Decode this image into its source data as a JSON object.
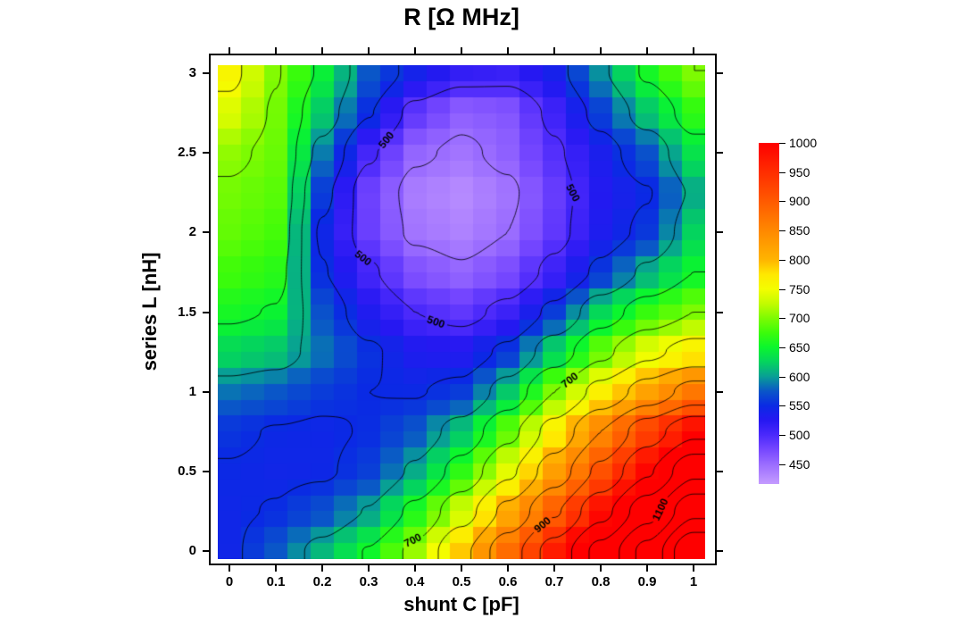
{
  "window": {
    "background": "#ffffff"
  },
  "chart_data": {
    "type": "heatmap",
    "title": "R [Ω  MHz]",
    "xlabel": "shunt C [pF]",
    "ylabel": "series L [nH]",
    "x_range": [
      -0.025,
      1.025
    ],
    "y_range": [
      -0.05,
      3.05
    ],
    "x_ticks": [
      0,
      0.1,
      0.2,
      0.3,
      0.4,
      0.5,
      0.6,
      0.7,
      0.8,
      0.9,
      1
    ],
    "y_ticks": [
      0,
      0.5,
      1,
      1.5,
      2,
      2.5,
      3
    ],
    "grid_cells_x": 21,
    "grid_cells_y": 31,
    "grid_c": [
      0,
      0.1,
      0.2,
      0.3,
      0.4,
      0.5,
      0.6,
      0.7,
      0.8,
      0.9,
      1.0
    ],
    "grid_l": [
      3.0,
      2.75,
      2.5,
      2.25,
      2.0,
      1.75,
      1.5,
      1.25,
      1.0,
      0.75,
      0.5,
      0.25,
      0.0
    ],
    "values": [
      [
        760,
        702,
        645,
        575,
        540,
        516,
        512,
        538,
        595,
        655,
        700
      ],
      [
        737,
        696,
        620,
        552,
        488,
        458,
        465,
        508,
        562,
        618,
        668
      ],
      [
        707,
        692,
        588,
        505,
        455,
        444,
        458,
        495,
        535,
        572,
        635
      ],
      [
        696,
        686,
        560,
        480,
        438,
        428,
        444,
        484,
        528,
        548,
        605
      ],
      [
        690,
        678,
        545,
        482,
        444,
        434,
        450,
        488,
        532,
        558,
        625
      ],
      [
        676,
        665,
        552,
        505,
        468,
        455,
        472,
        510,
        558,
        608,
        650
      ],
      [
        656,
        648,
        572,
        530,
        500,
        488,
        510,
        560,
        628,
        672,
        700
      ],
      [
        628,
        618,
        585,
        555,
        532,
        528,
        558,
        625,
        690,
        740,
        768
      ],
      [
        585,
        575,
        560,
        550,
        548,
        560,
        620,
        700,
        765,
        820,
        868
      ],
      [
        556,
        548,
        545,
        552,
        574,
        618,
        688,
        768,
        850,
        928,
        990
      ],
      [
        548,
        544,
        546,
        562,
        606,
        668,
        742,
        825,
        910,
        995,
        1090
      ],
      [
        545,
        552,
        570,
        602,
        660,
        730,
        812,
        895,
        985,
        1080,
        1190
      ],
      [
        544,
        575,
        612,
        652,
        710,
        790,
        880,
        970,
        1065,
        1165,
        1300
      ]
    ],
    "contours": {
      "start": 450,
      "step": 50,
      "end": 1250,
      "labels": [
        {
          "level": 500,
          "c": 0.29,
          "l": 2.7
        },
        {
          "level": 500,
          "c": 0.72,
          "l": 2.25
        },
        {
          "level": 500,
          "c": 0.2,
          "l": 1.52
        },
        {
          "level": 500,
          "c": 0.43,
          "l": 1.32
        },
        {
          "level": 700,
          "c": 0.38,
          "l": 0.22
        },
        {
          "level": 700,
          "c": 0.71,
          "l": 1.16
        },
        {
          "level": 900,
          "c": 0.635,
          "l": 0.3
        },
        {
          "level": 1100,
          "c": 0.885,
          "l": 0.3
        }
      ]
    },
    "colorbar": {
      "min": 416,
      "max": 1000,
      "ticks": [
        450,
        500,
        550,
        600,
        650,
        700,
        750,
        800,
        850,
        900,
        950,
        1000
      ]
    },
    "colormap": [
      [
        410,
        "#cda4ff"
      ],
      [
        450,
        "#9a6cff"
      ],
      [
        475,
        "#7647ff"
      ],
      [
        500,
        "#4b29fb"
      ],
      [
        525,
        "#2618f2"
      ],
      [
        550,
        "#0a2ae4"
      ],
      [
        575,
        "#0a56c8"
      ],
      [
        600,
        "#089f95"
      ],
      [
        625,
        "#04d45e"
      ],
      [
        650,
        "#0bf62e"
      ],
      [
        675,
        "#3cfc0a"
      ],
      [
        700,
        "#7dfb02"
      ],
      [
        725,
        "#c3fb00"
      ],
      [
        750,
        "#f4fd00"
      ],
      [
        775,
        "#ffe800"
      ],
      [
        800,
        "#ffb400"
      ],
      [
        850,
        "#ff8800"
      ],
      [
        900,
        "#ff5a00"
      ],
      [
        950,
        "#ff2d00"
      ],
      [
        1000,
        "#fe0000"
      ]
    ],
    "colors": {
      "background": "#ffffff",
      "frame": "#000000",
      "contour": "#000000",
      "text": "#000000"
    }
  }
}
